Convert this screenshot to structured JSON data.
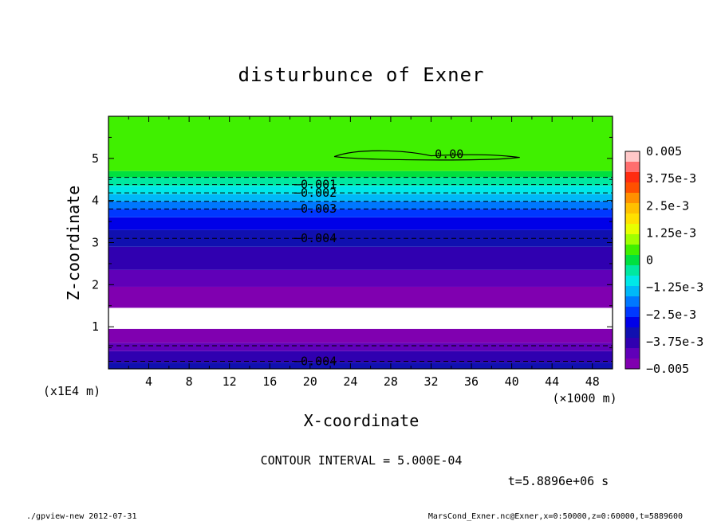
{
  "chart_data": {
    "type": "contour",
    "title": "disturbunce of Exner",
    "xlabel": "X-coordinate",
    "ylabel": "Z-coordinate",
    "x_unit_label": "(×1000 m)",
    "y_unit_label": "(x1E4 m)",
    "xlim": [
      0,
      50
    ],
    "ylim": [
      0,
      6
    ],
    "x_ticks": [
      "4",
      "8",
      "12",
      "16",
      "20",
      "24",
      "28",
      "32",
      "36",
      "40",
      "44",
      "48"
    ],
    "y_ticks": [
      "1",
      "2",
      "3",
      "4",
      "5"
    ],
    "colorbar": {
      "labels": [
        "0.005",
        "3.75e-3",
        "2.5e-3",
        "1.25e-3",
        "0",
        "−1.25e-3",
        "−2.5e-3",
        "−3.75e-3",
        "−0.005"
      ],
      "colors": [
        "#ffc8c8",
        "#ff6e6e",
        "#ff2c10",
        "#ff5000",
        "#ff9000",
        "#ffc000",
        "#ffe000",
        "#e8ff00",
        "#a0ff00",
        "#40f000",
        "#00e040",
        "#00e8a0",
        "#00e8e8",
        "#00b8f8",
        "#0078ff",
        "#0038ff",
        "#0000e8",
        "#1010b0",
        "#3000b0",
        "#6000b8",
        "#8000b0"
      ]
    },
    "bands": [
      {
        "z0": 0.0,
        "z1": 0.15,
        "color": "#1010b0"
      },
      {
        "z0": 0.15,
        "z1": 0.42,
        "color": "#3000b0"
      },
      {
        "z0": 0.42,
        "z1": 0.62,
        "color": "#6000b8"
      },
      {
        "z0": 0.62,
        "z1": 0.95,
        "color": "#8000b0"
      },
      {
        "z0": 0.95,
        "z1": 1.45,
        "color": "#ffffff"
      },
      {
        "z0": 1.45,
        "z1": 1.95,
        "color": "#8000b0"
      },
      {
        "z0": 1.95,
        "z1": 2.35,
        "color": "#6000b8"
      },
      {
        "z0": 2.35,
        "z1": 2.9,
        "color": "#3000b0"
      },
      {
        "z0": 2.9,
        "z1": 3.3,
        "color": "#1010b0"
      },
      {
        "z0": 3.3,
        "z1": 3.6,
        "color": "#0000e8"
      },
      {
        "z0": 3.6,
        "z1": 3.8,
        "color": "#0038ff"
      },
      {
        "z0": 3.8,
        "z1": 3.98,
        "color": "#0078ff"
      },
      {
        "z0": 3.98,
        "z1": 4.15,
        "color": "#00b8f8"
      },
      {
        "z0": 4.15,
        "z1": 4.35,
        "color": "#00e8e8"
      },
      {
        "z0": 4.35,
        "z1": 4.55,
        "color": "#00e8a0"
      },
      {
        "z0": 4.55,
        "z1": 4.7,
        "color": "#00e040"
      },
      {
        "z0": 4.7,
        "z1": 6.0,
        "color": "#40f000"
      }
    ],
    "contour_lines": [
      {
        "z": 0.18,
        "label": "−0.004"
      },
      {
        "z": 0.55,
        "label": ""
      },
      {
        "z": 3.1,
        "label": "−0.004"
      },
      {
        "z": 3.8,
        "label": "−0.003"
      },
      {
        "z": 3.98,
        "label": ""
      },
      {
        "z": 4.18,
        "label": "−0.002"
      },
      {
        "z": 4.38,
        "label": "−0.001"
      },
      {
        "z": 4.55,
        "label": ""
      }
    ],
    "zero_contour_label": "0.00",
    "contour_interval_text": "CONTOUR INTERVAL = 5.000E-04",
    "time_text": "t=5.8896e+06 s"
  },
  "footer": {
    "left": "./gpview-new   2012-07-31",
    "right": "MarsCond_Exner.nc@Exner,x=0:50000,z=0:60000,t=5889600"
  }
}
